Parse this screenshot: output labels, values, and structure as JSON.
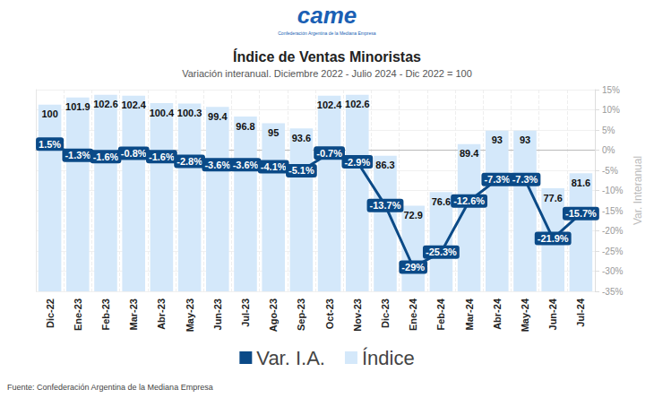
{
  "chart_data": {
    "type": "bar",
    "title": "Índice de Ventas Minoristas",
    "subtitle": "Variación interanual. Diciembre 2022 - Julio 2024 - Dic 2022 = 100",
    "logo_text": "came",
    "logo_subtext": "Confederación Argentina de la Mediana Empresa",
    "source": "Fuente: Confederación Argentina de la Mediana Empresa",
    "y_label": "Var. Interanual",
    "categories": [
      "Dic-22",
      "Ene-23",
      "Feb-23",
      "Mar-23",
      "Abr-23",
      "May-23",
      "Jun-23",
      "Jul-23",
      "Ago-23",
      "Sep-23",
      "Oct-23",
      "Nov-23",
      "Dic-23",
      "Ene-24",
      "Feb-24",
      "Mar-24",
      "Abr-24",
      "May-24",
      "Jun-24",
      "Jul-24"
    ],
    "series": [
      {
        "name": "Var. I.A.",
        "type": "line",
        "color": "#0b4a87",
        "marker": "circle",
        "line_style": "solid",
        "values": [
          1.5,
          -1.3,
          -1.6,
          -0.8,
          -1.6,
          -2.8,
          -3.6,
          -3.6,
          -4.1,
          -5.1,
          -0.7,
          -2.9,
          -13.7,
          -29,
          -25.3,
          -12.6,
          -7.3,
          -7.3,
          -21.9,
          -15.7
        ],
        "value_labels": [
          "1.5%",
          "-1.3%",
          "-1.6%",
          "-0.8%",
          "-1.6%",
          "-2.8%",
          "-3.6%",
          "-3.6%",
          "-4.1%",
          "-5.1%",
          "-0.7%",
          "-2.9%",
          "-13.7%",
          "-29%",
          "-25.3%",
          "-12.6%",
          "-7.3%",
          "-7.3%",
          "-21.9%",
          "-15.7%"
        ]
      },
      {
        "name": "Índice",
        "type": "bar",
        "color": "#d4e8fa",
        "axis": "y2",
        "values": [
          100,
          101.9,
          102.6,
          102.4,
          100.4,
          100.3,
          99.4,
          96.8,
          95,
          93.6,
          102.4,
          102.6,
          86.3,
          72.9,
          76.6,
          89.4,
          93,
          93,
          77.6,
          81.6
        ]
      }
    ],
    "ylim": [
      -35,
      15
    ],
    "yticks": [
      {
        "value": -35,
        "label": "-35%"
      },
      {
        "value": -30,
        "label": "-30%"
      },
      {
        "value": -25,
        "label": "-25%"
      },
      {
        "value": -20,
        "label": "-20%"
      },
      {
        "value": -15,
        "label": "-15%"
      },
      {
        "value": -10,
        "label": "-10%"
      },
      {
        "value": -5,
        "label": "-5%"
      },
      {
        "value": 0,
        "label": "0%"
      },
      {
        "value": 5,
        "label": "5%"
      },
      {
        "value": 10,
        "label": "10%"
      },
      {
        "value": 15,
        "label": "15%"
      }
    ],
    "y2lim": [
      50,
      104
    ],
    "y2ticks": [],
    "grid": true,
    "legend": "bottom",
    "data_labels": true
  }
}
